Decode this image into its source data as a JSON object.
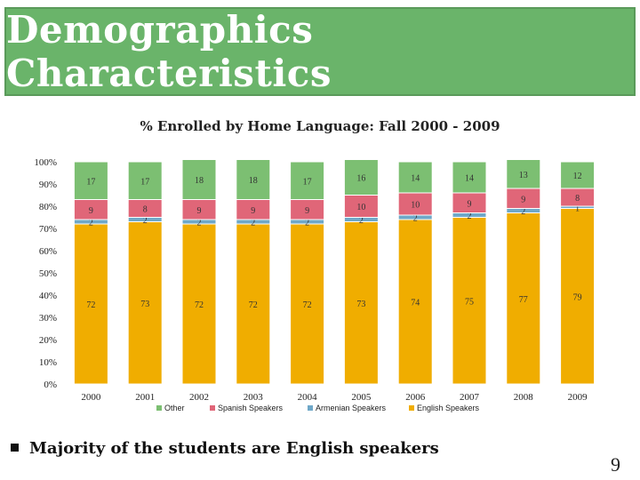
{
  "slide": {
    "title": "Demographics Characteristics",
    "bullet": "Majority of the students are English speakers",
    "page_number": "9"
  },
  "chart_data": {
    "type": "bar",
    "stacked": true,
    "title": "% Enrolled by Home Language: Fall 2000 - 2009",
    "categories": [
      "2000",
      "2001",
      "2002",
      "2003",
      "2004",
      "2005",
      "2006",
      "2007",
      "2008",
      "2009"
    ],
    "y_ticks": [
      "0%",
      "10%",
      "20%",
      "30%",
      "40%",
      "50%",
      "60%",
      "70%",
      "80%",
      "90%",
      "100%"
    ],
    "ylim": [
      0,
      100
    ],
    "legend_position": "bottom",
    "series": [
      {
        "name": "English Speakers",
        "color": "#f0ad00",
        "values": [
          72,
          73,
          72,
          72,
          72,
          73,
          74,
          75,
          77,
          79
        ]
      },
      {
        "name": "Armenian Speakers",
        "color": "#6fa8c8",
        "values": [
          2,
          2,
          2,
          2,
          2,
          2,
          2,
          2,
          2,
          1
        ]
      },
      {
        "name": "Spanish Speakers",
        "color": "#e06678",
        "values": [
          9,
          8,
          9,
          9,
          9,
          10,
          10,
          9,
          9,
          8
        ]
      },
      {
        "name": "Other",
        "color": "#7cbf72",
        "values": [
          17,
          17,
          18,
          18,
          17,
          16,
          14,
          14,
          13,
          12
        ]
      }
    ],
    "legend_order": [
      "Other",
      "Spanish Speakers",
      "Armenian Speakers",
      "English Speakers"
    ]
  }
}
